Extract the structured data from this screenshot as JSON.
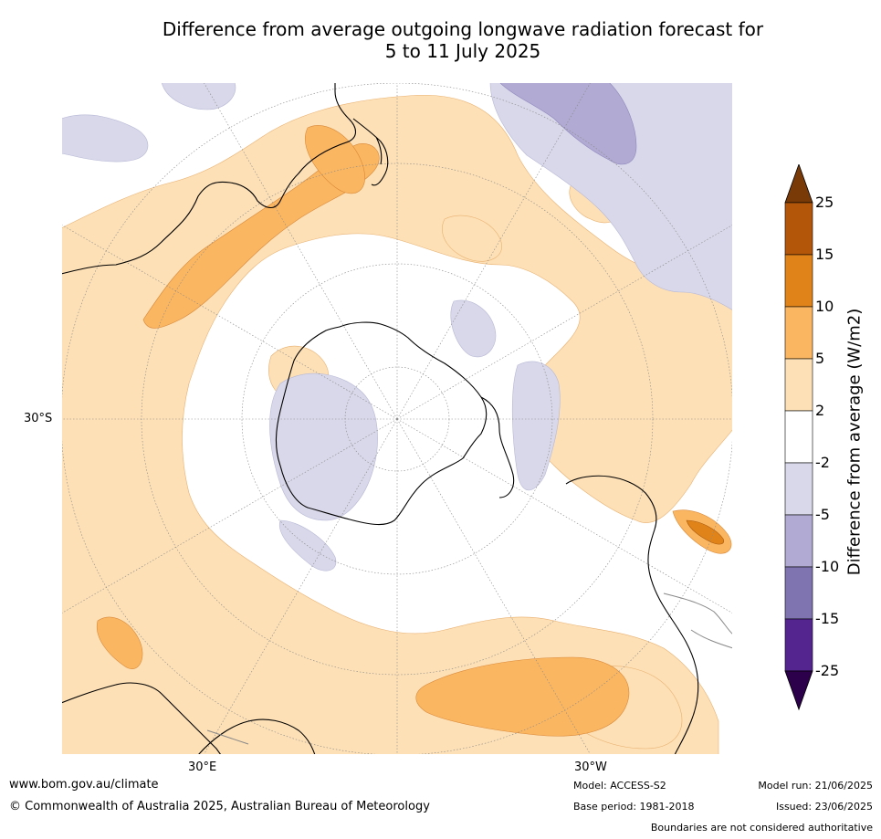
{
  "title": {
    "line1": "Difference from average outgoing longwave radiation forecast for",
    "line2": "5 to 11 July 2025"
  },
  "map": {
    "projection": "south-polar-stereographic",
    "labels": {
      "lat_left": "30°S",
      "lon_bottom_left": "30°E",
      "lon_bottom_right": "30°W"
    }
  },
  "colorbar": {
    "title": "Difference from average (W/m2)",
    "tick_labels": [
      "25",
      "15",
      "10",
      "5",
      "2",
      "-2",
      "-5",
      "-10",
      "-15",
      "-25"
    ],
    "colors": [
      "#7a3a07",
      "#b3560a",
      "#e0841a",
      "#fbb661",
      "#fde0b6",
      "#ffffff",
      "#d8d8ea",
      "#b1aad2",
      "#7f74b0",
      "#54258f",
      "#2d004b"
    ]
  },
  "footer": {
    "website": "www.bom.gov.au/climate",
    "copyright": "© Commonwealth of Australia 2025, Australian Bureau of Meteorology",
    "model": "Model: ACCESS-S2",
    "base_period": "Base period: 1981-2018",
    "model_run": "Model run: 21/06/2025",
    "issued": "Issued: 23/06/2025",
    "disclaimer": "Boundaries are not considered authoritative"
  }
}
